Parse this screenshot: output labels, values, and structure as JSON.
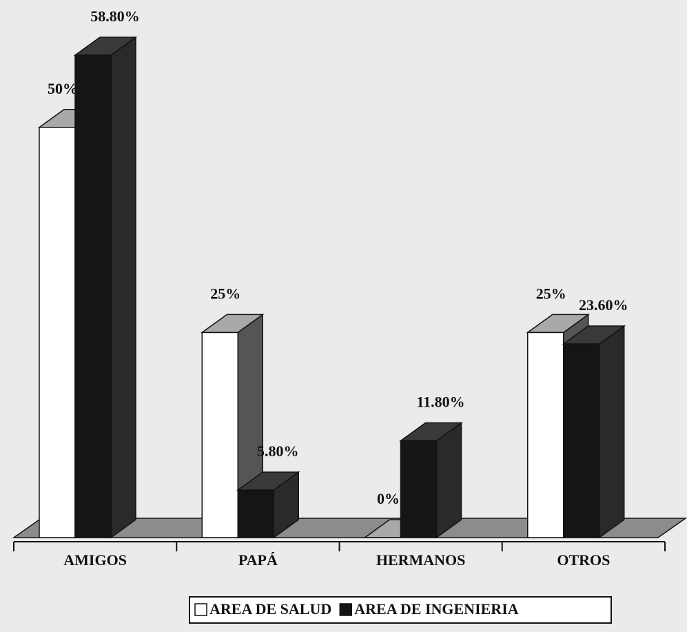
{
  "chart_data": {
    "type": "bar3d",
    "categories": [
      "AMIGOS",
      "PAPÁ",
      "HERMANOS",
      "OTROS"
    ],
    "series": [
      {
        "name": "AREA DE SALUD",
        "color": "#ffffff",
        "values": [
          50,
          25,
          0,
          25
        ],
        "value_labels": [
          "50%",
          "25%",
          "0%",
          "25%"
        ]
      },
      {
        "name": "AREA DE INGENIERIA",
        "color": "#151515",
        "values": [
          58.8,
          5.8,
          11.8,
          23.6
        ],
        "value_labels": [
          "58.80%",
          "5.80%",
          "11.80%",
          "23.60%"
        ]
      }
    ]
  }
}
